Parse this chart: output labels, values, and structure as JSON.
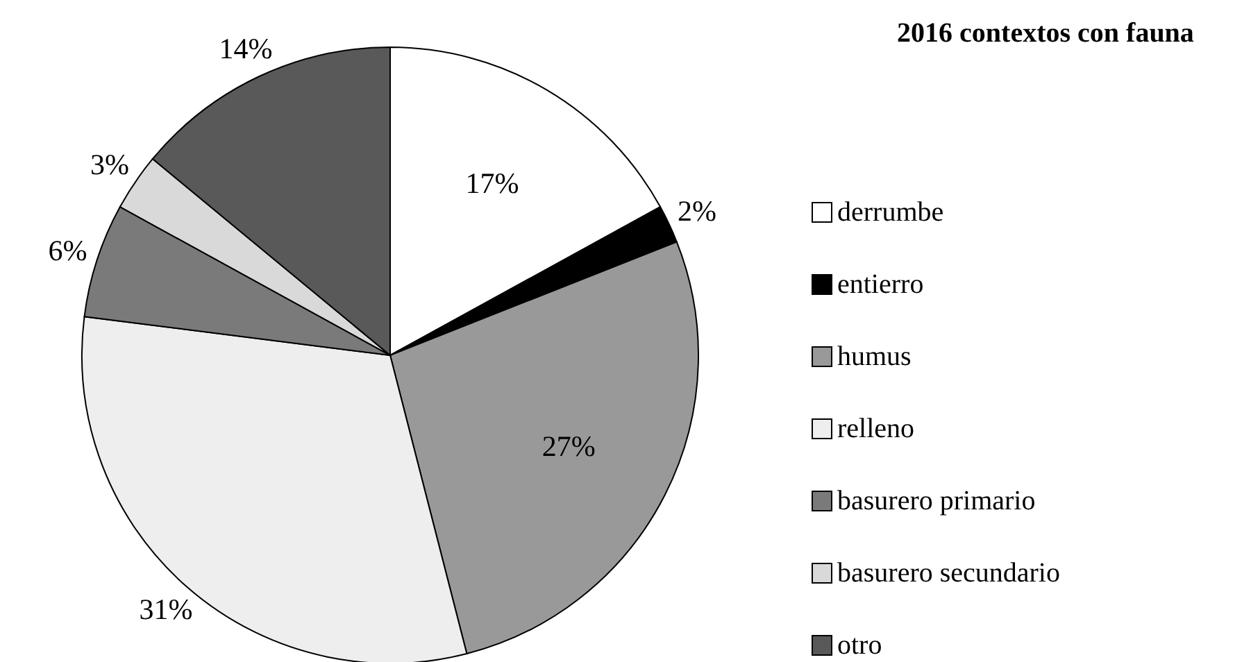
{
  "chart_data": {
    "type": "pie",
    "title": "2016 contextos con fauna",
    "categories": [
      "derrumbe",
      "entierro",
      "humus",
      "relleno",
      "basurero primario",
      "basurero secundario",
      "otro"
    ],
    "values": [
      17,
      2,
      27,
      31,
      6,
      3,
      14
    ],
    "value_labels": [
      "17%",
      "2%",
      "27%",
      "31%",
      "6%",
      "3%",
      "14%"
    ],
    "colors": [
      "#ffffff",
      "#000000",
      "#999999",
      "#eeeeee",
      "#7a7a7a",
      "#d9d9d9",
      "#595959"
    ],
    "legend": "right"
  }
}
